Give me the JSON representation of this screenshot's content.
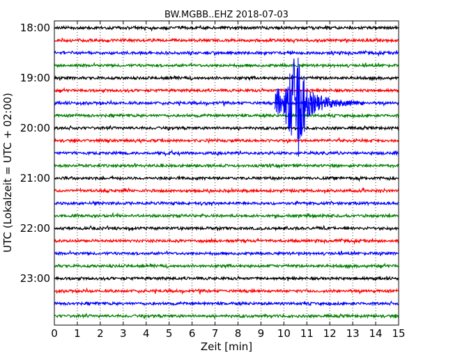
{
  "chart_data": {
    "type": "line",
    "title": "BW.MGBB..EHZ 2018-07-03",
    "xlabel": "Zeit  [min]",
    "ylabel": "UTC (Lokalzeit = UTC + 02:00)",
    "xlim": [
      0,
      15
    ],
    "x_ticks": [
      "0",
      "1",
      "2",
      "3",
      "4",
      "5",
      "6",
      "7",
      "8",
      "9",
      "10",
      "11",
      "12",
      "13",
      "14",
      "15"
    ],
    "y_ticks": [
      "18:00",
      "19:00",
      "20:00",
      "21:00",
      "22:00",
      "23:00"
    ],
    "trace_interval_min": 15,
    "grid": "vertical-dotted",
    "colors": [
      "#000000",
      "#ff0000",
      "#0000ff",
      "#008000"
    ],
    "rows": [
      {
        "time": "18:00",
        "color": "#000000"
      },
      {
        "time": "18:15",
        "color": "#ff0000"
      },
      {
        "time": "18:30",
        "color": "#0000ff"
      },
      {
        "time": "18:45",
        "color": "#008000"
      },
      {
        "time": "19:00",
        "color": "#000000"
      },
      {
        "time": "19:15",
        "color": "#ff0000"
      },
      {
        "time": "19:30",
        "color": "#0000ff"
      },
      {
        "time": "19:45",
        "color": "#008000"
      },
      {
        "time": "20:00",
        "color": "#000000"
      },
      {
        "time": "20:15",
        "color": "#ff0000"
      },
      {
        "time": "20:30",
        "color": "#0000ff"
      },
      {
        "time": "20:45",
        "color": "#008000"
      },
      {
        "time": "21:00",
        "color": "#000000"
      },
      {
        "time": "21:15",
        "color": "#ff0000"
      },
      {
        "time": "21:30",
        "color": "#0000ff"
      },
      {
        "time": "21:45",
        "color": "#008000"
      },
      {
        "time": "22:00",
        "color": "#000000"
      },
      {
        "time": "22:15",
        "color": "#ff0000"
      },
      {
        "time": "22:30",
        "color": "#0000ff"
      },
      {
        "time": "22:45",
        "color": "#008000"
      },
      {
        "time": "23:00",
        "color": "#000000"
      },
      {
        "time": "23:15",
        "color": "#ff0000"
      },
      {
        "time": "23:30",
        "color": "#0000ff"
      },
      {
        "time": "23:45",
        "color": "#008000"
      }
    ],
    "event": {
      "time": "19:30",
      "start_min": 9.6,
      "peak_min": 10.6,
      "end_min": 13.5,
      "color": "#0000ff"
    }
  }
}
